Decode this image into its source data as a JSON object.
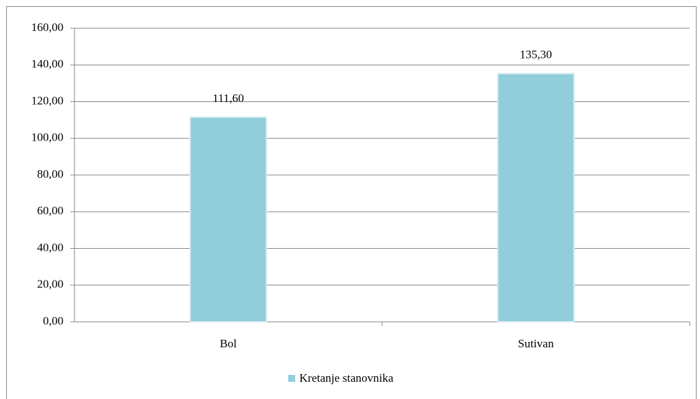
{
  "chart_data": {
    "type": "bar",
    "categories": [
      "Bol",
      "Sutivan"
    ],
    "series": [
      {
        "name": "Kretanje stanovnika",
        "color": "#92cddc",
        "values": [
          111.6,
          135.3
        ],
        "value_labels": [
          "111,60",
          "135,30"
        ]
      }
    ],
    "ylim": [
      0,
      160
    ],
    "yticks": [
      {
        "value": 0,
        "label": "0,00"
      },
      {
        "value": 20,
        "label": "20,00"
      },
      {
        "value": 40,
        "label": "40,00"
      },
      {
        "value": 60,
        "label": "60,00"
      },
      {
        "value": 80,
        "label": "80,00"
      },
      {
        "value": 100,
        "label": "100,00"
      },
      {
        "value": 120,
        "label": "120,00"
      },
      {
        "value": 140,
        "label": "140,00"
      },
      {
        "value": 160,
        "label": "160,00"
      }
    ],
    "grid": true,
    "legend": "bottom"
  }
}
